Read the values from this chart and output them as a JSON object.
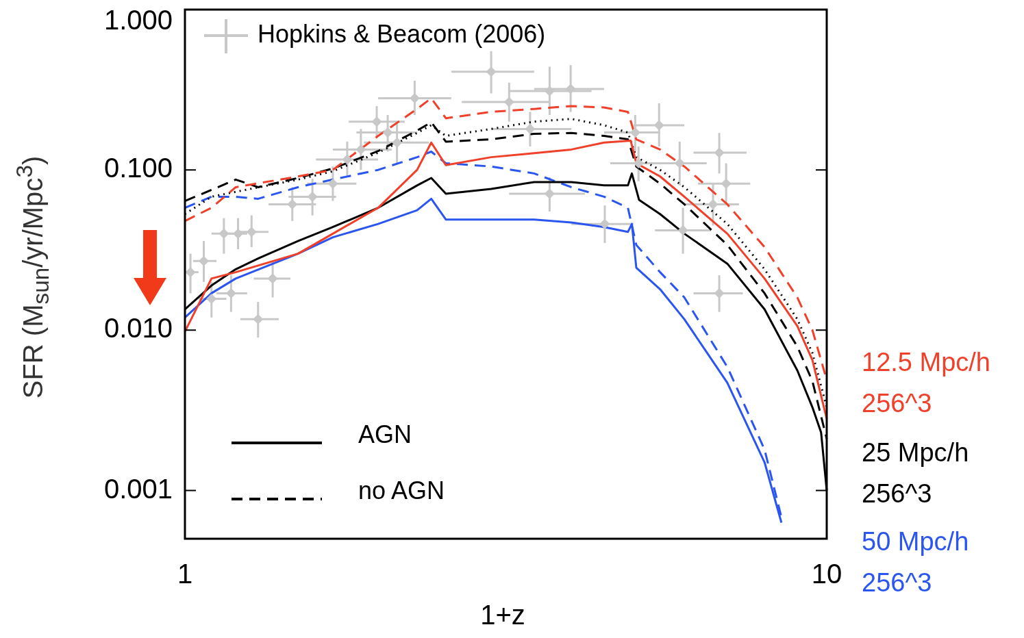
{
  "chart_data": {
    "type": "line",
    "xlabel": "1+z",
    "ylabel": "SFR (M$_{sun}$/yr/Mpc$^{3}$)",
    "log": "xy",
    "grid": false,
    "legend": "left",
    "marker": "none",
    "xlim": [
      1,
      10
    ],
    "xticks": [
      1,
      10
    ],
    "ylim": [
      0.0005,
      1
    ],
    "yticks": [
      {
        "value": 1,
        "label": "1.000"
      },
      {
        "value": 0.1,
        "label": "0.100"
      },
      {
        "value": 0.01,
        "label": "0.010"
      },
      {
        "value": 0.001,
        "label": "0.001"
      }
    ],
    "annotations": [
      "12.5 Mpc/h",
      "256^3",
      "25 Mpc/h",
      "256^3",
      "50 Mpc/h",
      "256^3"
    ],
    "series": [
      {
        "type": "scatter",
        "name": "Hopkins & Beacom (2006)",
        "color": "#c8c8c8",
        "marker": "diamond",
        "x": [
          1.02,
          1.07,
          1.1,
          1.15,
          1.18,
          1.21,
          1.27,
          1.3,
          1.37,
          1.47,
          1.58,
          1.7,
          1.79,
          1.88,
          1.99,
          2.07,
          2.14,
          2.28,
          3.0,
          3.2,
          3.45,
          3.7,
          3.7,
          3.99,
          4.51,
          5.03,
          5.09,
          5.48,
          5.9,
          5.97,
          6.65,
          6.8,
          6.97,
          6.8
        ],
        "values": [
          0.023,
          0.027,
          0.0157,
          0.04,
          0.017,
          0.04,
          0.041,
          0.0117,
          0.021,
          0.061,
          0.068,
          0.082,
          0.116,
          0.134,
          0.2,
          0.171,
          0.148,
          0.28,
          0.41,
          0.265,
          0.18,
          0.31,
          0.071,
          0.32,
          0.046,
          0.171,
          0.11,
          0.19,
          0.11,
          0.042,
          0.061,
          0.128,
          0.082,
          0.017
        ],
        "xerrors": [
          [
            1.0,
            1.05
          ],
          [
            1.03,
            1.12
          ],
          [
            1.05,
            1.16
          ],
          [
            1.1,
            1.2
          ],
          [
            1.12,
            1.25
          ],
          [
            1.17,
            1.25
          ],
          [
            1.2,
            1.35
          ],
          [
            1.22,
            1.4
          ],
          [
            1.28,
            1.46
          ],
          [
            1.35,
            1.6
          ],
          [
            1.45,
            1.72
          ],
          [
            1.55,
            1.85
          ],
          [
            1.6,
            2.0
          ],
          [
            1.7,
            2.1
          ],
          [
            1.8,
            2.2
          ],
          [
            1.85,
            2.3
          ],
          [
            1.9,
            2.4
          ],
          [
            2.0,
            2.6
          ],
          [
            2.6,
            3.5
          ],
          [
            2.7,
            3.7
          ],
          [
            3.0,
            4.0
          ],
          [
            3.2,
            4.3
          ],
          [
            3.2,
            4.2
          ],
          [
            3.5,
            4.5
          ],
          [
            4.0,
            5.0
          ],
          [
            4.5,
            5.5
          ],
          [
            4.6,
            5.6
          ],
          [
            5.0,
            6.0
          ],
          [
            5.3,
            6.5
          ],
          [
            5.4,
            6.6
          ],
          [
            6.0,
            7.3
          ],
          [
            6.2,
            7.5
          ],
          [
            6.3,
            7.6
          ],
          [
            6.2,
            7.4
          ]
        ],
        "errors": [
          [
            0.017,
            0.03
          ],
          [
            0.02,
            0.036
          ],
          [
            0.012,
            0.02
          ],
          [
            0.03,
            0.05
          ],
          [
            0.013,
            0.022
          ],
          [
            0.032,
            0.05
          ],
          [
            0.033,
            0.052
          ],
          [
            0.009,
            0.015
          ],
          [
            0.016,
            0.027
          ],
          [
            0.048,
            0.078
          ],
          [
            0.052,
            0.088
          ],
          [
            0.064,
            0.105
          ],
          [
            0.09,
            0.15
          ],
          [
            0.1,
            0.18
          ],
          [
            0.16,
            0.25
          ],
          [
            0.13,
            0.22
          ],
          [
            0.11,
            0.2
          ],
          [
            0.22,
            0.36
          ],
          [
            0.3,
            0.55
          ],
          [
            0.2,
            0.35
          ],
          [
            0.14,
            0.23
          ],
          [
            0.22,
            0.44
          ],
          [
            0.055,
            0.09
          ],
          [
            0.23,
            0.45
          ],
          [
            0.035,
            0.06
          ],
          [
            0.13,
            0.22
          ],
          [
            0.085,
            0.14
          ],
          [
            0.14,
            0.26
          ],
          [
            0.08,
            0.15
          ],
          [
            0.03,
            0.058
          ],
          [
            0.045,
            0.082
          ],
          [
            0.095,
            0.17
          ],
          [
            0.06,
            0.11
          ],
          [
            0.013,
            0.022
          ]
        ]
      },
      {
        "color": "#f0402a",
        "line_style": "solid",
        "x": [
          1,
          1.1,
          1.2,
          1.5,
          1.7,
          2,
          2.3,
          2.42,
          2.55,
          3,
          3.5,
          4,
          4.5,
          4.95,
          5.05,
          5.5,
          6,
          7,
          8,
          9,
          9.5,
          10
        ],
        "values": [
          0.0098,
          0.021,
          0.023,
          0.03,
          0.04,
          0.058,
          0.1,
          0.148,
          0.107,
          0.12,
          0.127,
          0.134,
          0.148,
          0.152,
          0.11,
          0.091,
          0.068,
          0.04,
          0.021,
          0.0106,
          0.0065,
          0.0028
        ]
      },
      {
        "color": "#f0402a",
        "line_style": "dashed",
        "x": [
          1,
          1.1,
          1.2,
          1.5,
          1.7,
          2,
          2.3,
          2.42,
          2.55,
          3,
          3.5,
          4,
          4.5,
          4.9,
          5.05,
          5.5,
          6,
          7,
          8,
          9,
          9.5,
          10
        ],
        "values": [
          0.048,
          0.058,
          0.078,
          0.091,
          0.1,
          0.163,
          0.24,
          0.28,
          0.21,
          0.23,
          0.24,
          0.25,
          0.245,
          0.23,
          0.155,
          0.134,
          0.105,
          0.061,
          0.033,
          0.016,
          0.01,
          0.0049
        ]
      },
      {
        "name": "AGN",
        "color": "#000000",
        "line_style": "solid",
        "x": [
          1,
          1.1,
          1.2,
          1.3,
          1.5,
          1.7,
          2,
          2.3,
          2.42,
          2.55,
          3,
          3.5,
          4,
          4.5,
          4.9,
          4.97,
          5.1,
          5.5,
          6,
          7,
          8,
          9,
          9.5,
          9.8,
          10
        ],
        "values": [
          0.0135,
          0.019,
          0.024,
          0.028,
          0.036,
          0.044,
          0.058,
          0.08,
          0.089,
          0.071,
          0.076,
          0.084,
          0.084,
          0.08,
          0.08,
          0.095,
          0.065,
          0.053,
          0.04,
          0.026,
          0.0135,
          0.0056,
          0.0033,
          0.0023,
          0.001
        ]
      },
      {
        "name": "no AGN",
        "color": "#000000",
        "line_style": "dashed",
        "x": [
          1,
          1.1,
          1.2,
          1.3,
          1.5,
          1.7,
          2,
          2.3,
          2.42,
          2.55,
          3,
          3.5,
          4,
          4.5,
          4.9,
          5.05,
          5.5,
          6,
          7,
          8,
          9,
          9.5,
          10
        ],
        "values": [
          0.064,
          0.075,
          0.087,
          0.078,
          0.089,
          0.102,
          0.131,
          0.176,
          0.198,
          0.15,
          0.155,
          0.168,
          0.17,
          0.163,
          0.155,
          0.105,
          0.082,
          0.061,
          0.034,
          0.017,
          0.0079,
          0.0048,
          0.0021
        ]
      },
      {
        "color": "#000000",
        "line_style": "dotted",
        "x": [
          1,
          1.1,
          1.2,
          1.5,
          1.7,
          2,
          2.3,
          2.42,
          2.55,
          3,
          3.5,
          4,
          4.5,
          4.9,
          5.05,
          5.5,
          6,
          7,
          8,
          9,
          9.5,
          10
        ],
        "values": [
          0.053,
          0.068,
          0.073,
          0.087,
          0.098,
          0.128,
          0.17,
          0.19,
          0.163,
          0.18,
          0.2,
          0.208,
          0.19,
          0.171,
          0.12,
          0.1,
          0.078,
          0.046,
          0.024,
          0.0117,
          0.0072,
          0.0033
        ]
      },
      {
        "color": "#2a55f0",
        "line_style": "solid",
        "x": [
          1,
          1.1,
          1.2,
          1.5,
          1.7,
          2,
          2.3,
          2.42,
          2.55,
          3,
          3.5,
          4,
          4.5,
          4.9,
          4.97,
          5.05,
          5.5,
          6,
          7,
          8,
          8.5
        ],
        "values": [
          0.012,
          0.017,
          0.021,
          0.03,
          0.038,
          0.046,
          0.056,
          0.066,
          0.049,
          0.049,
          0.049,
          0.047,
          0.044,
          0.041,
          0.046,
          0.0245,
          0.018,
          0.0117,
          0.0047,
          0.0015,
          0.00063
        ]
      },
      {
        "color": "#2a55f0",
        "line_style": "dashed",
        "x": [
          1,
          1.1,
          1.2,
          1.3,
          1.5,
          1.7,
          2,
          2.3,
          2.42,
          2.55,
          3,
          3.5,
          4,
          4.5,
          4.9,
          5.05,
          5.5,
          6,
          7,
          8,
          8.5
        ],
        "values": [
          0.058,
          0.068,
          0.068,
          0.066,
          0.078,
          0.087,
          0.1,
          0.12,
          0.13,
          0.11,
          0.105,
          0.095,
          0.078,
          0.068,
          0.058,
          0.034,
          0.023,
          0.016,
          0.0059,
          0.0018,
          0.00068
        ]
      }
    ]
  }
}
